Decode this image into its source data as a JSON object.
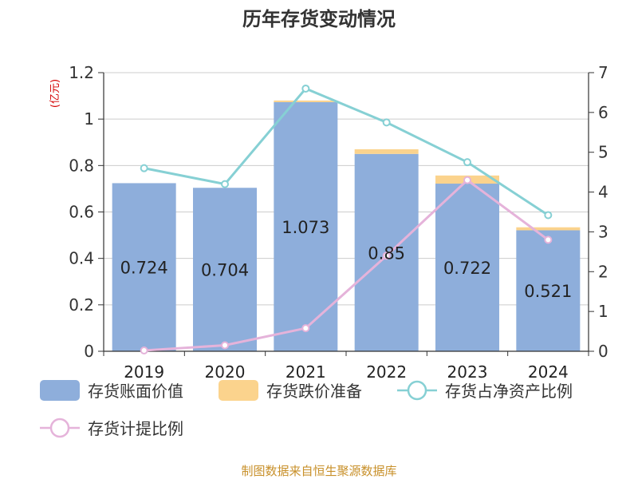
{
  "chart_data": {
    "type": "bar",
    "title": "历年存货变动情况",
    "y_left_unit": "(亿元)",
    "categories": [
      "2019",
      "2020",
      "2021",
      "2022",
      "2023",
      "2024"
    ],
    "y_left_ticks": [
      "0",
      "0.2",
      "0.4",
      "0.6",
      "0.8",
      "1",
      "1.2"
    ],
    "y_right_ticks": [
      "0",
      "1",
      "2",
      "3",
      "4",
      "5",
      "6",
      "7"
    ],
    "ylim_left": [
      0,
      1.2
    ],
    "ylim_right": [
      0,
      7
    ],
    "grid": true,
    "legend_position": "bottom",
    "series": [
      {
        "name": "存货账面价值",
        "kind": "bar-stacked",
        "axis": "left",
        "color": "#8eaedb",
        "values": [
          0.724,
          0.704,
          1.073,
          0.85,
          0.722,
          0.521
        ],
        "labels": [
          "0.724",
          "0.704",
          "1.073",
          "0.85",
          "0.722",
          "0.521"
        ]
      },
      {
        "name": "存货跌价准备",
        "kind": "bar-stacked",
        "axis": "left",
        "color": "#fbd38d",
        "values": [
          0.0,
          0.0,
          0.007,
          0.02,
          0.035,
          0.013
        ]
      },
      {
        "name": "存货占净资产比例",
        "kind": "line",
        "axis": "right",
        "color": "#86d0d4",
        "values": [
          4.6,
          4.2,
          6.6,
          5.75,
          4.75,
          3.42
        ]
      },
      {
        "name": "存货计提比例",
        "kind": "line",
        "axis": "right",
        "color": "#e5b3da",
        "values": [
          0.02,
          0.15,
          0.58,
          2.4,
          4.3,
          2.8
        ]
      }
    ]
  },
  "footer": {
    "source": "制图数据来自恒生聚源数据库"
  }
}
